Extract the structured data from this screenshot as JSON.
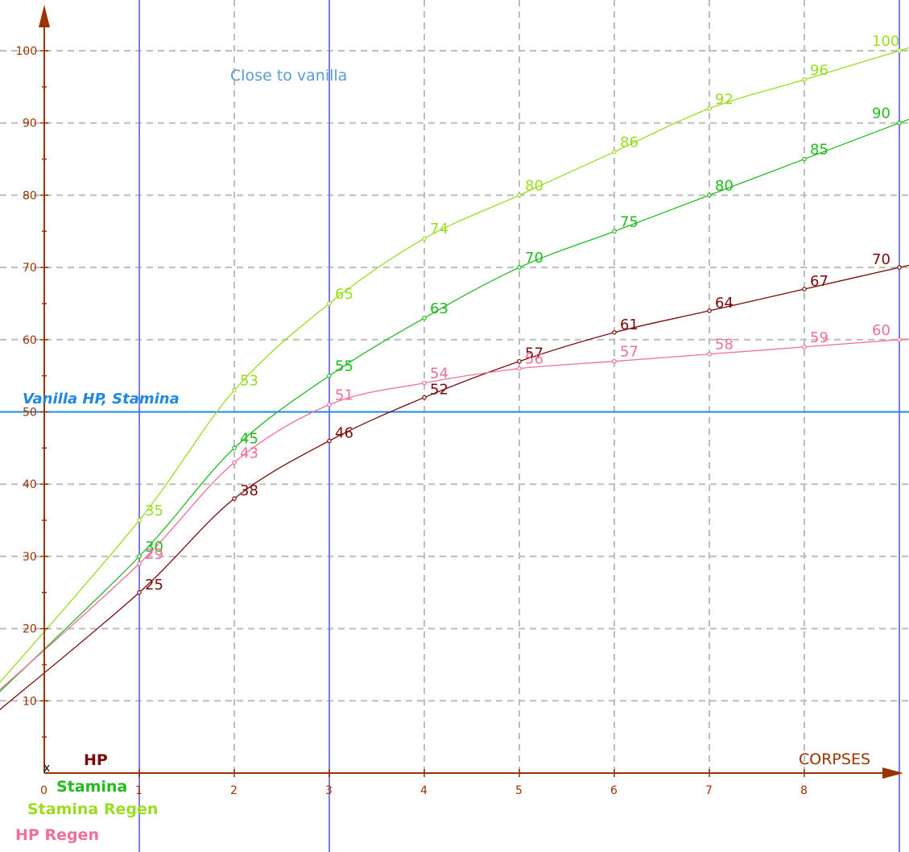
{
  "chart_data": {
    "type": "line",
    "x_axis_label": "CORPSES",
    "x_ticks": [
      "0",
      "1",
      "2",
      "3",
      "4",
      "5",
      "6",
      "7",
      "8"
    ],
    "y_ticks": [
      "10",
      "20",
      "30",
      "40",
      "50",
      "60",
      "70",
      "80",
      "90",
      "100"
    ],
    "xlim": [
      0,
      9
    ],
    "ylim": [
      0,
      100
    ],
    "grid": true,
    "origin_marker": "x",
    "reference_line": {
      "y": 50,
      "label": "Vanilla HP, Stamina",
      "color": "#1e88e5"
    },
    "vertical_lines": [
      1,
      3,
      9
    ],
    "annotation": "Close to vanilla",
    "series": [
      {
        "name": "Stamina Regen",
        "color": "#99dd22",
        "x": [
          1,
          2,
          3,
          4,
          5,
          6,
          7,
          8,
          9
        ],
        "values": [
          35,
          53,
          65,
          74,
          80,
          86,
          92,
          96,
          100
        ],
        "labels": [
          "35",
          "53",
          "65",
          "74",
          "80",
          "86",
          "92",
          "96",
          "100"
        ]
      },
      {
        "name": "Stamina",
        "color": "#22bb22",
        "x": [
          1,
          2,
          3,
          4,
          5,
          6,
          7,
          8,
          9
        ],
        "values": [
          30,
          45,
          55,
          63,
          70,
          75,
          80,
          85,
          90
        ],
        "labels": [
          "30",
          "45",
          "55",
          "63",
          "70",
          "75",
          "80",
          "85",
          "90"
        ]
      },
      {
        "name": "HP",
        "color": "#7a0a0a",
        "x": [
          1,
          2,
          3,
          4,
          5,
          6,
          7,
          8,
          9
        ],
        "values": [
          25,
          38,
          46,
          52,
          57,
          61,
          64,
          67,
          70
        ],
        "labels": [
          "25",
          "38",
          "46",
          "52",
          "57",
          "61",
          "64",
          "67",
          "70"
        ]
      },
      {
        "name": "HP Regen",
        "color": "#ee6f9a",
        "x": [
          1,
          2,
          3,
          4,
          5,
          6,
          7,
          8,
          9
        ],
        "values": [
          29,
          43,
          51,
          54,
          56,
          57,
          58,
          59,
          60
        ],
        "labels": [
          "29",
          "43",
          "51",
          "54",
          "56",
          "57",
          "58",
          "59",
          "60"
        ]
      }
    ],
    "legend": [
      {
        "name": "HP",
        "color": "#7a0a0a"
      },
      {
        "name": "Stamina",
        "color": "#22bb22"
      },
      {
        "name": "Stamina Regen",
        "color": "#99dd22"
      },
      {
        "name": "HP Regen",
        "color": "#ee6f9a"
      }
    ]
  }
}
